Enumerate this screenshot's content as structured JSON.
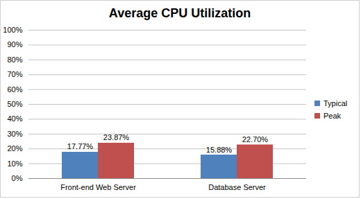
{
  "chart_data": {
    "type": "bar",
    "title": "Average CPU Utilization",
    "categories": [
      "Front-end Web Server",
      "Database Server"
    ],
    "series": [
      {
        "name": "Typical",
        "color": "#4f81bd",
        "values": [
          17.77,
          15.88
        ],
        "value_labels": [
          "17.77%",
          "15.88%"
        ]
      },
      {
        "name": "Peak",
        "color": "#c0504d",
        "values": [
          23.87,
          22.7
        ],
        "value_labels": [
          "23.87%",
          "22.70%"
        ]
      }
    ],
    "ylim": [
      0,
      100
    ],
    "yticks": [
      {
        "value": 0,
        "label": "0%"
      },
      {
        "value": 10,
        "label": "10%"
      },
      {
        "value": 20,
        "label": "20%"
      },
      {
        "value": 30,
        "label": "30%"
      },
      {
        "value": 40,
        "label": "40%"
      },
      {
        "value": 50,
        "label": "50%"
      },
      {
        "value": 60,
        "label": "60%"
      },
      {
        "value": 70,
        "label": "70%"
      },
      {
        "value": 80,
        "label": "80%"
      },
      {
        "value": 90,
        "label": "90%"
      },
      {
        "value": 100,
        "label": "100%"
      }
    ],
    "grid": true,
    "legend": "right",
    "data_labels": true
  }
}
